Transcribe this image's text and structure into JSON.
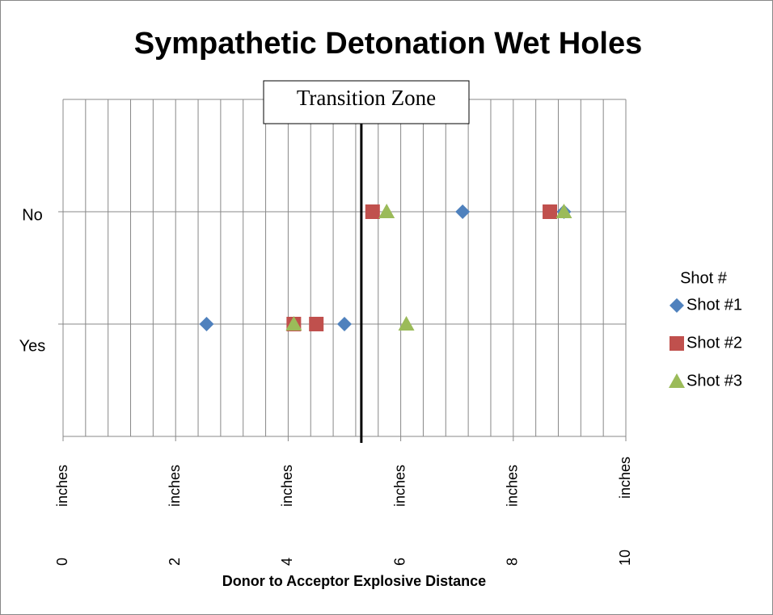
{
  "chart_data": {
    "type": "scatter",
    "title": "Sympathetic Detonation Wet Holes",
    "x_label": "Donor to Acceptor Explosive Distance",
    "xlim": [
      0,
      10
    ],
    "xticks": [
      {
        "value": 0,
        "label": "0 inches"
      },
      {
        "value": 2,
        "label": "2 inches"
      },
      {
        "value": 4,
        "label": "4 inches"
      },
      {
        "value": 6,
        "label": "6 inches"
      },
      {
        "value": 8,
        "label": "8 inches"
      },
      {
        "value": 10,
        "label": "10 inches"
      }
    ],
    "x_grid": [
      0,
      0.4,
      0.8,
      1.2,
      1.6,
      2,
      2.4,
      2.8,
      3.2,
      3.6,
      4,
      4.4,
      4.8,
      5.2,
      5.6,
      6,
      6.4,
      6.8,
      7.2,
      7.6,
      8,
      8.4,
      8.8,
      9.2,
      9.6,
      10
    ],
    "ylim": [
      0,
      3
    ],
    "yticks": [
      {
        "value": 1,
        "label": "Yes"
      },
      {
        "value": 2,
        "label": "No"
      }
    ],
    "y_grid": [
      0,
      1,
      2,
      3
    ],
    "grid": true,
    "legend_title": "Shot #",
    "legend": "right",
    "transition_line": 5.3,
    "annotation": "Transition Zone",
    "series": [
      {
        "name": "Shot #1",
        "color": "#4f81bd",
        "marker": "diamond",
        "x": [
          2.55,
          5.0,
          7.1,
          8.9
        ],
        "values": [
          1,
          1,
          2,
          2
        ]
      },
      {
        "name": "Shot #2",
        "color": "#c0504d",
        "marker": "square",
        "x": [
          4.1,
          4.5,
          5.5,
          8.65
        ],
        "values": [
          1,
          1,
          2,
          2
        ]
      },
      {
        "name": "Shot #3",
        "color": "#9bbb59",
        "marker": "triangle",
        "x": [
          4.1,
          6.1,
          5.75,
          8.9
        ],
        "values": [
          1,
          1,
          2,
          2
        ]
      }
    ]
  }
}
